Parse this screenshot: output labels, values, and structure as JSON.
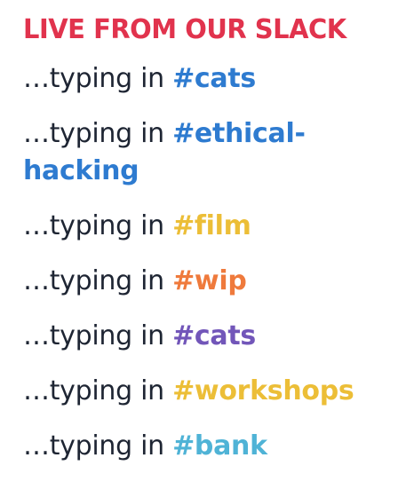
{
  "header": {
    "title": "LIVE FROM OUR SLACK",
    "color": "#e1334d"
  },
  "feed": {
    "items": [
      {
        "prefix": "…typing in ",
        "channel": "#cats",
        "color": "#2e7bd0"
      },
      {
        "prefix": "…typing in ",
        "channel": "#ethical-hacking",
        "color": "#2e7bd0"
      },
      {
        "prefix": "…typing in ",
        "channel": "#film",
        "color": "#ecbe37"
      },
      {
        "prefix": "…typing in ",
        "channel": "#wip",
        "color": "#ef7a3c"
      },
      {
        "prefix": "…typing in ",
        "channel": "#cats",
        "color": "#7256b9"
      },
      {
        "prefix": "…typing in ",
        "channel": "#workshops",
        "color": "#ecbe37"
      },
      {
        "prefix": "…typing in ",
        "channel": "#bank",
        "color": "#4fb3d6"
      }
    ]
  }
}
